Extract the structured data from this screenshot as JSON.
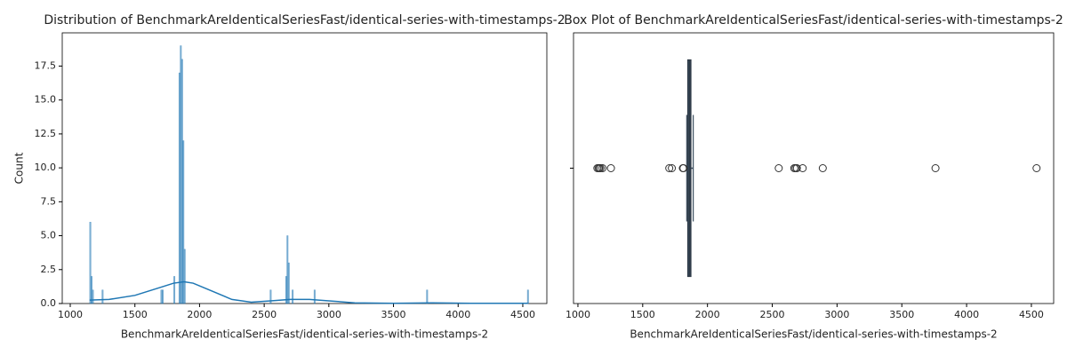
{
  "chart_data": [
    {
      "type": "histogram",
      "title": "Distribution of BenchmarkAreIdenticalSeriesFast/identical-series-with-timestamps-2",
      "xlabel": "BenchmarkAreIdenticalSeriesFast/identical-series-with-timestamps-2",
      "ylabel": "Count",
      "bins": [
        1150,
        1160,
        1170,
        1180,
        1245,
        1255,
        1700,
        1710,
        1720,
        1800,
        1810,
        1840,
        1850,
        1860,
        1870,
        1880,
        1890,
        2545,
        2555,
        2665,
        2675,
        2685,
        2695,
        2715,
        2725,
        2885,
        2895,
        3755,
        3765,
        4535,
        4545
      ],
      "values": [
        6,
        2,
        1,
        0,
        1,
        0,
        1,
        1,
        0,
        2,
        0,
        17,
        19,
        18,
        12,
        4,
        0,
        1,
        0,
        2,
        5,
        3,
        0,
        1,
        0,
        1,
        0,
        1,
        0,
        1
      ],
      "color": "#1f77b4",
      "kde": {
        "x": [
          1150,
          1300,
          1500,
          1700,
          1800,
          1880,
          1950,
          2100,
          2250,
          2400,
          2550,
          2700,
          2850,
          3000,
          3200,
          3500,
          3800,
          4100,
          4540
        ],
        "values": [
          0.25,
          0.3,
          0.6,
          1.2,
          1.5,
          1.6,
          1.5,
          0.9,
          0.3,
          0.1,
          0.2,
          0.3,
          0.3,
          0.2,
          0.05,
          0.02,
          0.05,
          0.02,
          0.02
        ]
      },
      "xlim": [
        938,
        4686
      ],
      "ylim": [
        0,
        19.95
      ],
      "xticks": [
        1000,
        1500,
        2000,
        2500,
        3000,
        3500,
        4000,
        4500
      ],
      "yticks": [
        {
          "value": 0,
          "label": "0.0"
        },
        2.5,
        {
          "value": 5,
          "label": "5.0"
        },
        7.5,
        {
          "value": 10,
          "label": "10.0"
        },
        12.5,
        {
          "value": 15,
          "label": "15.0"
        },
        17.5
      ]
    },
    {
      "type": "box",
      "title": "Box Plot of BenchmarkAreIdenticalSeriesFast/identical-series-with-timestamps-2",
      "xlabel": "BenchmarkAreIdenticalSeriesFast/identical-series-with-timestamps-2",
      "stats": {
        "whislo": 1840,
        "q1": 1848,
        "med": 1862,
        "q3": 1872,
        "whishi": 1890
      },
      "outliers": [
        1150,
        1160,
        1165,
        1175,
        1190,
        1255,
        1705,
        1725,
        1810,
        1815,
        2550,
        2670,
        2680,
        2690,
        2735,
        2890,
        3760,
        4540
      ],
      "color": "#3b4d5e",
      "xlim": [
        966,
        4672
      ],
      "xticks": [
        1000,
        1500,
        2000,
        2500,
        3000,
        3500,
        4000,
        4500
      ]
    }
  ]
}
